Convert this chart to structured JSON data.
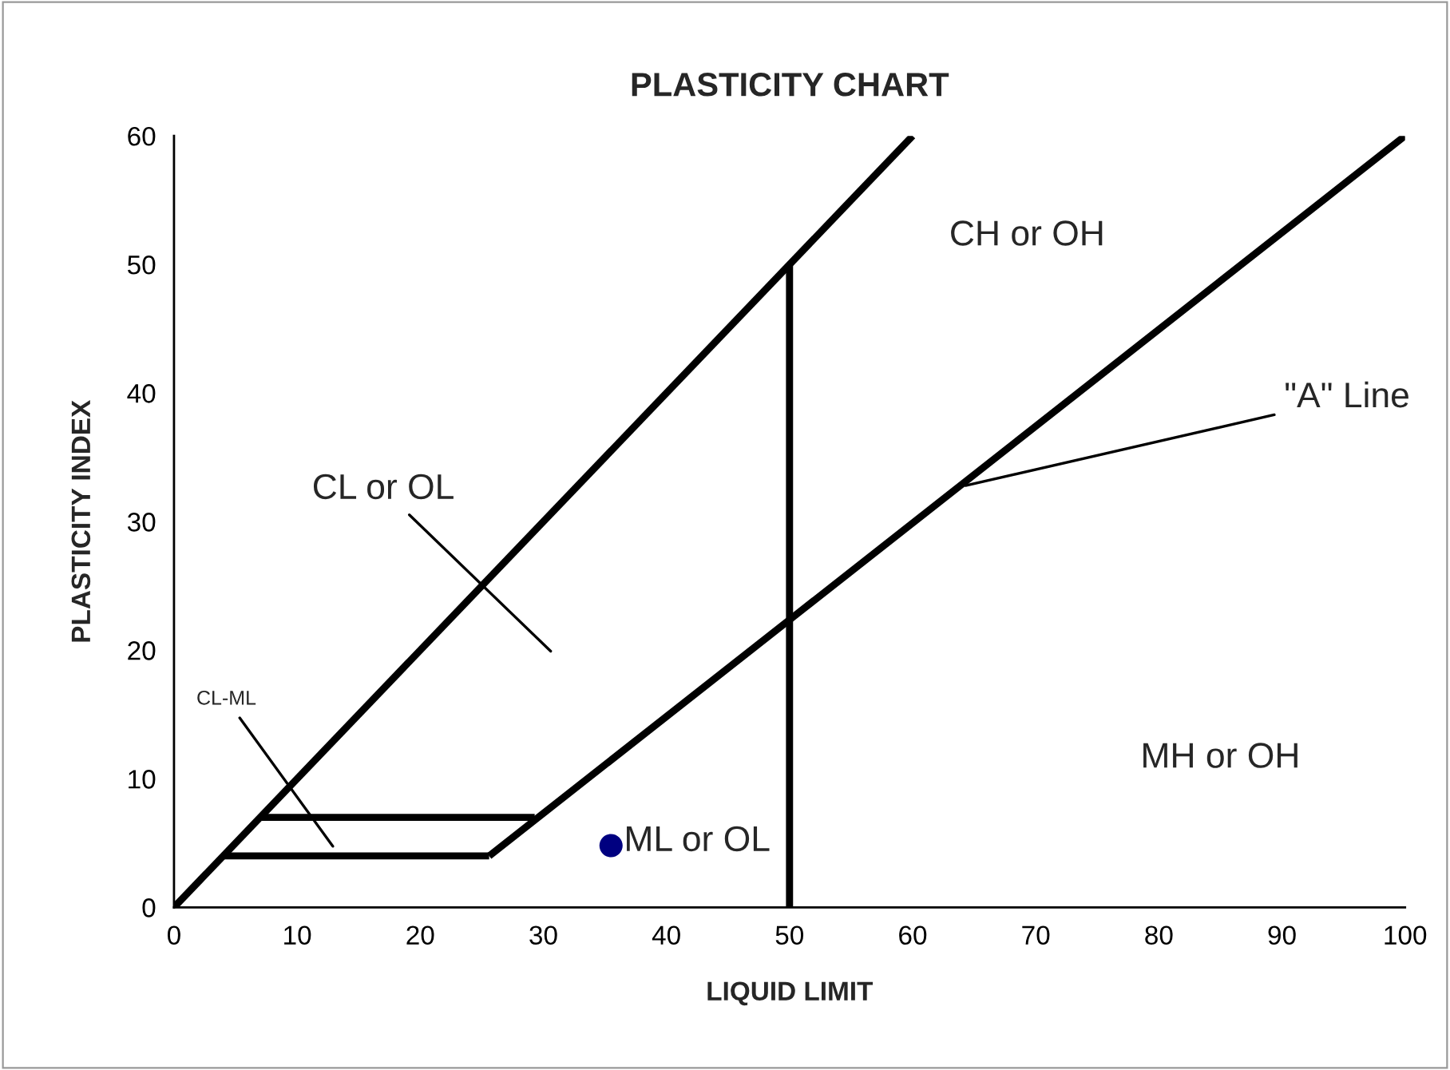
{
  "chart_data": {
    "type": "line",
    "title": "PLASTICITY CHART",
    "xlabel": "LIQUID LIMIT",
    "ylabel": "PLASTICITY INDEX",
    "xlim": [
      0,
      100
    ],
    "xticks": [
      0,
      10,
      20,
      30,
      40,
      50,
      60,
      70,
      80,
      90,
      100
    ],
    "ylim": [
      0,
      60
    ],
    "yticks": [
      0,
      10,
      20,
      30,
      40,
      50,
      60
    ],
    "series": [
      {
        "color": "#000000",
        "x": [
          0,
          60
        ],
        "values": [
          0,
          60
        ]
      },
      {
        "color": "#000000",
        "x": [
          25.6,
          100
        ],
        "values": [
          4,
          60
        ]
      },
      {
        "color": "#000000",
        "x": [
          50,
          50
        ],
        "values": [
          0,
          50
        ]
      },
      {
        "color": "#000000",
        "x": [
          4.1,
          25.6
        ],
        "values": [
          4,
          4
        ]
      },
      {
        "color": "#000000",
        "x": [
          7.1,
          29.3
        ],
        "values": [
          7,
          7
        ]
      },
      {
        "type": "scatter",
        "color": "#000080",
        "x": [
          35.5
        ],
        "values": [
          4.8
        ]
      }
    ],
    "annotations": [
      "CL or OL",
      {
        "text": "CL-ML",
        "x": 12.9,
        "y": 4.75
      },
      {
        "text": "\"A\" Line",
        "x": 64.3,
        "y": 32.8
      },
      "CH or OH",
      "ML or OL",
      "MH or OH"
    ]
  }
}
